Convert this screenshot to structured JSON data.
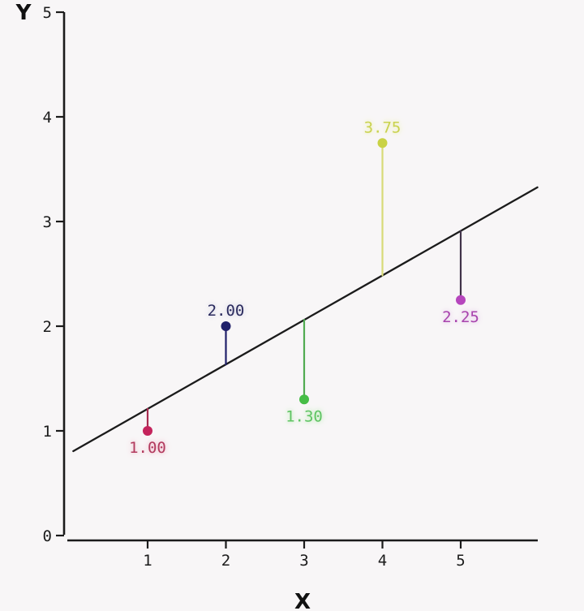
{
  "figure": {
    "background": "#f8f6f7",
    "axis_color": "#1b1b1b"
  },
  "chart_data": {
    "type": "scatter",
    "title": "",
    "xlabel": "X",
    "ylabel": "Y",
    "xlim": [
      0,
      6.2
    ],
    "ylim": [
      0,
      5
    ],
    "x_ticks": [
      1,
      2,
      3,
      4,
      5
    ],
    "y_ticks": [
      0,
      1,
      2,
      3,
      4,
      5
    ],
    "grid": false,
    "legend": false,
    "fitted_line": {
      "slope": 0.425,
      "intercept": 0.785,
      "x_start": 0.05,
      "x_end": 5.98,
      "color": "#1b1b1b"
    },
    "points": [
      {
        "x": 1,
        "y": 1.0,
        "label": "1.00",
        "label_position": "below",
        "dot_color": "#c4245c",
        "residual_color": "#a92b50",
        "label_color": "#b23a5e",
        "halo_color": "#f2c9d4"
      },
      {
        "x": 2,
        "y": 2.0,
        "label": "2.00",
        "label_position": "above",
        "dot_color": "#20206a",
        "residual_color": "#20206a",
        "label_color": "#2b2b5e",
        "halo_color": "#dcdcea"
      },
      {
        "x": 3,
        "y": 1.3,
        "label": "1.30",
        "label_position": "below",
        "dot_color": "#46bd46",
        "residual_color": "#51ab51",
        "label_color": "#5fc463",
        "halo_color": "#c9eec4"
      },
      {
        "x": 4,
        "y": 3.75,
        "label": "3.75",
        "label_position": "above",
        "dot_color": "#c9d245",
        "residual_color": "#d8da78",
        "label_color": "#c9d24e",
        "halo_color": "#f0f2c0"
      },
      {
        "x": 5,
        "y": 2.25,
        "label": "2.25",
        "label_position": "below",
        "dot_color": "#b646bd",
        "residual_color": "#413349",
        "label_color": "#a843ad",
        "halo_color": "#e8cdec"
      }
    ]
  }
}
